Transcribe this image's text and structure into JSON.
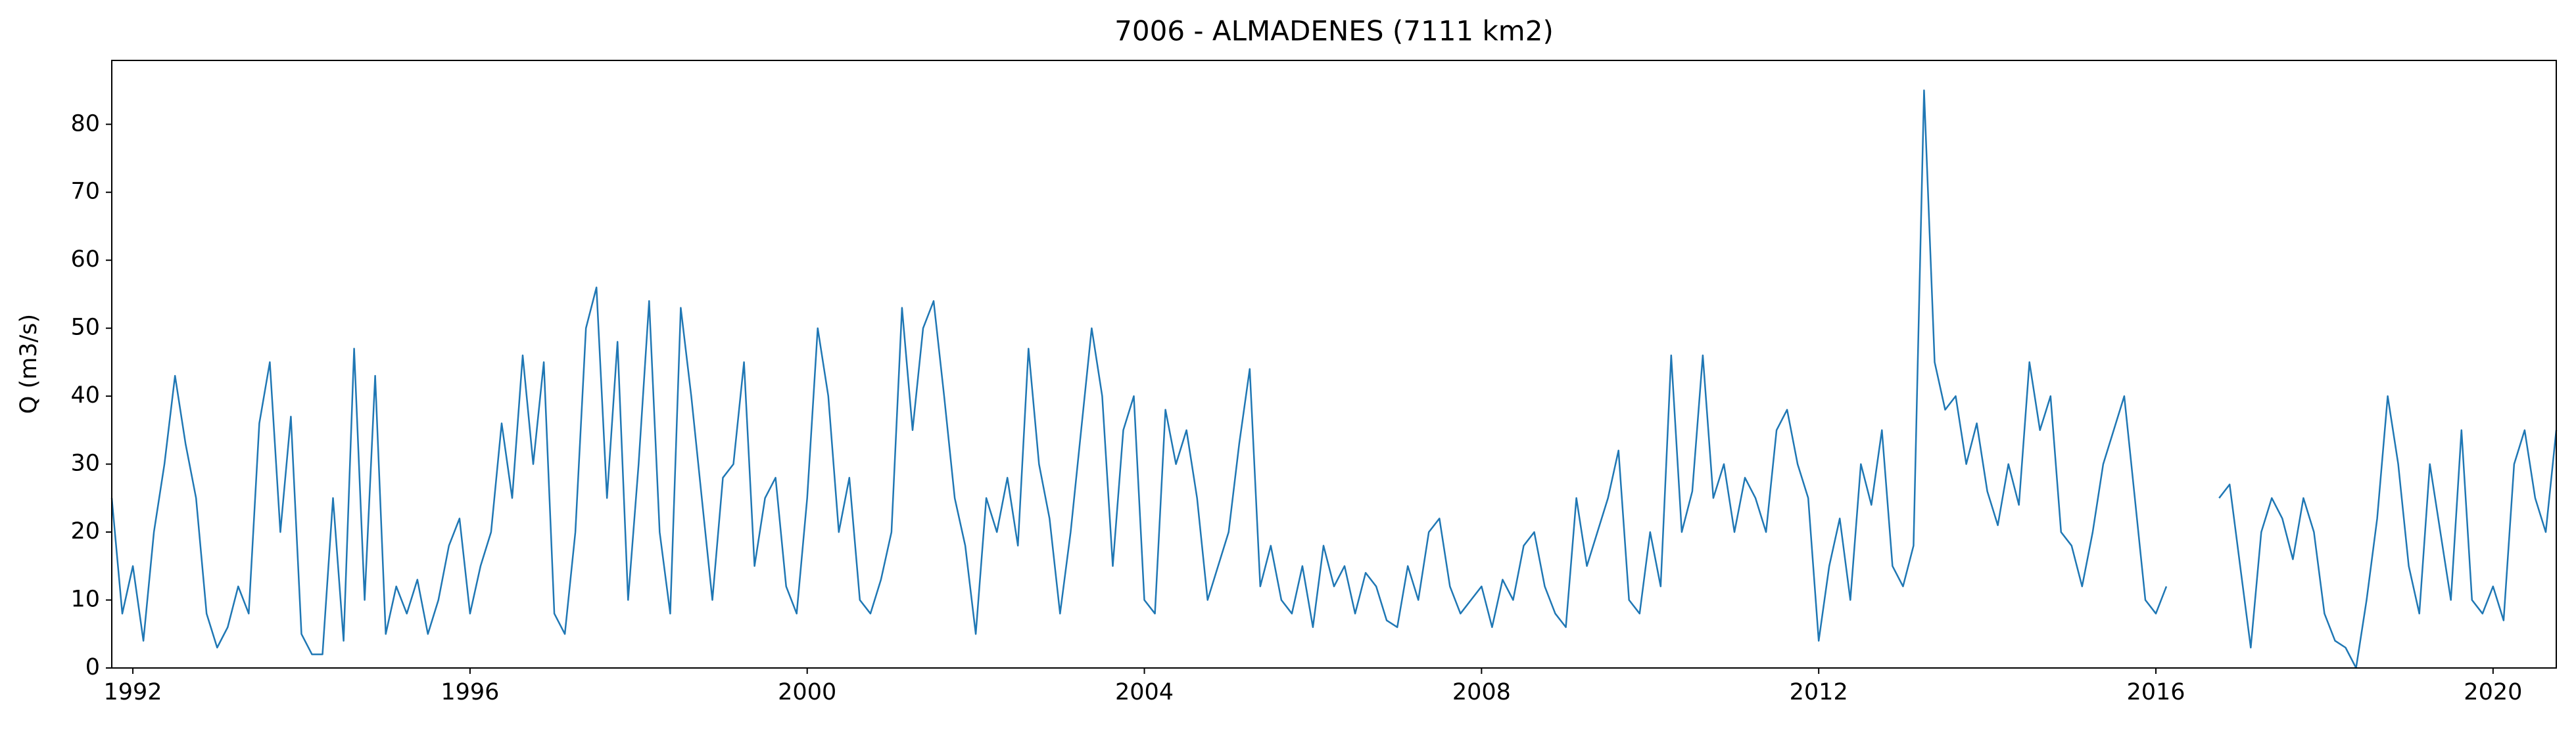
{
  "chart_data": {
    "type": "line",
    "title": "7006 - ALMADENES (7111 km2)",
    "y_label": "Q (m3/s)",
    "x": [
      1991.75,
      1991.875,
      1992,
      1992.125,
      1992.25,
      1992.375,
      1992.5,
      1992.625,
      1992.75,
      1992.875,
      1993,
      1993.125,
      1993.25,
      1993.375,
      1993.5,
      1993.625,
      1993.75,
      1993.875,
      1994,
      1994.125,
      1994.25,
      1994.375,
      1994.5,
      1994.625,
      1994.75,
      1994.875,
      1995,
      1995.125,
      1995.25,
      1995.375,
      1995.5,
      1995.625,
      1995.75,
      1995.875,
      1996,
      1996.125,
      1996.25,
      1996.375,
      1996.5,
      1996.625,
      1996.75,
      1996.875,
      1997,
      1997.125,
      1997.25,
      1997.375,
      1997.5,
      1997.625,
      1997.75,
      1997.875,
      1998,
      1998.125,
      1998.25,
      1998.375,
      1998.5,
      1998.625,
      1998.75,
      1998.875,
      1999,
      1999.125,
      1999.25,
      1999.375,
      1999.5,
      1999.625,
      1999.75,
      1999.875,
      2000,
      2000.125,
      2000.25,
      2000.375,
      2000.5,
      2000.625,
      2000.75,
      2000.875,
      2001,
      2001.125,
      2001.25,
      2001.375,
      2001.5,
      2001.625,
      2001.75,
      2001.875,
      2002,
      2002.125,
      2002.25,
      2002.375,
      2002.5,
      2002.625,
      2002.75,
      2002.875,
      2003,
      2003.125,
      2003.25,
      2003.375,
      2003.5,
      2003.625,
      2003.75,
      2003.875,
      2004,
      2004.125,
      2004.25,
      2004.375,
      2004.5,
      2004.625,
      2004.75,
      2004.875,
      2005,
      2005.125,
      2005.25,
      2005.375,
      2005.5,
      2005.625,
      2005.75,
      2005.875,
      2006,
      2006.125,
      2006.25,
      2006.375,
      2006.5,
      2006.625,
      2006.75,
      2006.875,
      2007,
      2007.125,
      2007.25,
      2007.375,
      2007.5,
      2007.625,
      2007.75,
      2007.875,
      2008,
      2008.125,
      2008.25,
      2008.375,
      2008.5,
      2008.625,
      2008.75,
      2008.875,
      2009,
      2009.125,
      2009.25,
      2009.375,
      2009.5,
      2009.625,
      2009.75,
      2009.875,
      2010,
      2010.125,
      2010.25,
      2010.375,
      2010.5,
      2010.625,
      2010.75,
      2010.875,
      2011,
      2011.125,
      2011.25,
      2011.375,
      2011.5,
      2011.625,
      2011.75,
      2011.875,
      2012,
      2012.125,
      2012.25,
      2012.375,
      2012.5,
      2012.625,
      2012.75,
      2012.875,
      2013,
      2013.125,
      2013.25,
      2013.375,
      2013.5,
      2013.625,
      2013.75,
      2013.875,
      2014,
      2014.125,
      2014.25,
      2014.375,
      2014.5,
      2014.625,
      2014.75,
      2014.875,
      2015,
      2015.125,
      2015.25,
      2015.375,
      2015.5,
      2015.625,
      2015.75,
      2015.875,
      2016,
      2016.125,
      2016.25,
      2016.375,
      2016.5,
      2016.625,
      2016.75,
      2016.875,
      2017,
      2017.125,
      2017.25,
      2017.375,
      2017.5,
      2017.625,
      2017.75,
      2017.875,
      2018,
      2018.125,
      2018.25,
      2018.375,
      2018.5,
      2018.625,
      2018.75,
      2018.875,
      2019,
      2019.125,
      2019.25,
      2019.375,
      2019.5,
      2019.625,
      2019.75,
      2019.875,
      2020,
      2020.125,
      2020.25,
      2020.375,
      2020.5,
      2020.625,
      2020.75
    ],
    "series": [
      {
        "name": "Q",
        "color": "#1f77b4",
        "values": [
          25,
          8,
          15,
          4,
          20,
          30,
          43,
          33,
          25,
          8,
          3,
          6,
          12,
          8,
          36,
          45,
          20,
          37,
          5,
          2,
          2,
          25,
          4,
          47,
          10,
          43,
          5,
          12,
          8,
          13,
          5,
          10,
          18,
          22,
          8,
          15,
          20,
          36,
          25,
          46,
          30,
          45,
          8,
          5,
          20,
          50,
          56,
          25,
          48,
          10,
          30,
          54,
          20,
          8,
          53,
          40,
          25,
          10,
          28,
          30,
          45,
          15,
          25,
          28,
          12,
          8,
          25,
          50,
          40,
          20,
          28,
          10,
          8,
          13,
          20,
          53,
          35,
          50,
          54,
          40,
          25,
          18,
          5,
          25,
          20,
          28,
          18,
          47,
          30,
          22,
          8,
          20,
          35,
          50,
          40,
          15,
          35,
          40,
          10,
          8,
          38,
          30,
          35,
          25,
          10,
          15,
          20,
          33,
          44,
          12,
          18,
          10,
          8,
          15,
          6,
          18,
          12,
          15,
          8,
          14,
          12,
          7,
          6,
          15,
          10,
          20,
          22,
          12,
          8,
          10,
          12,
          6,
          13,
          10,
          18,
          20,
          12,
          8,
          6,
          25,
          15,
          20,
          25,
          32,
          10,
          8,
          20,
          12,
          46,
          20,
          26,
          46,
          25,
          30,
          20,
          28,
          25,
          20,
          35,
          38,
          30,
          25,
          4,
          15,
          22,
          10,
          30,
          24,
          35,
          15,
          12,
          18,
          85,
          45,
          38,
          40,
          30,
          36,
          26,
          21,
          30,
          24,
          45,
          35,
          40,
          20,
          18,
          12,
          20,
          30,
          35,
          40,
          25,
          10,
          8,
          12,
          null,
          null,
          null,
          null,
          25,
          27,
          15,
          3,
          20,
          25,
          22,
          16,
          25,
          20,
          8,
          4,
          3,
          0,
          10,
          22,
          40,
          30,
          15,
          8,
          30,
          20,
          10,
          35,
          10,
          8,
          12,
          7,
          30,
          35,
          25,
          20,
          35
        ]
      }
    ],
    "xlim": [
      1991.75,
      2020.75
    ],
    "xticks": [
      1992,
      1996,
      2000,
      2004,
      2008,
      2012,
      2016,
      2020
    ],
    "ylim": [
      0,
      89.4
    ],
    "yticks": [
      0,
      10,
      20,
      30,
      40,
      50,
      60,
      70,
      80
    ]
  }
}
